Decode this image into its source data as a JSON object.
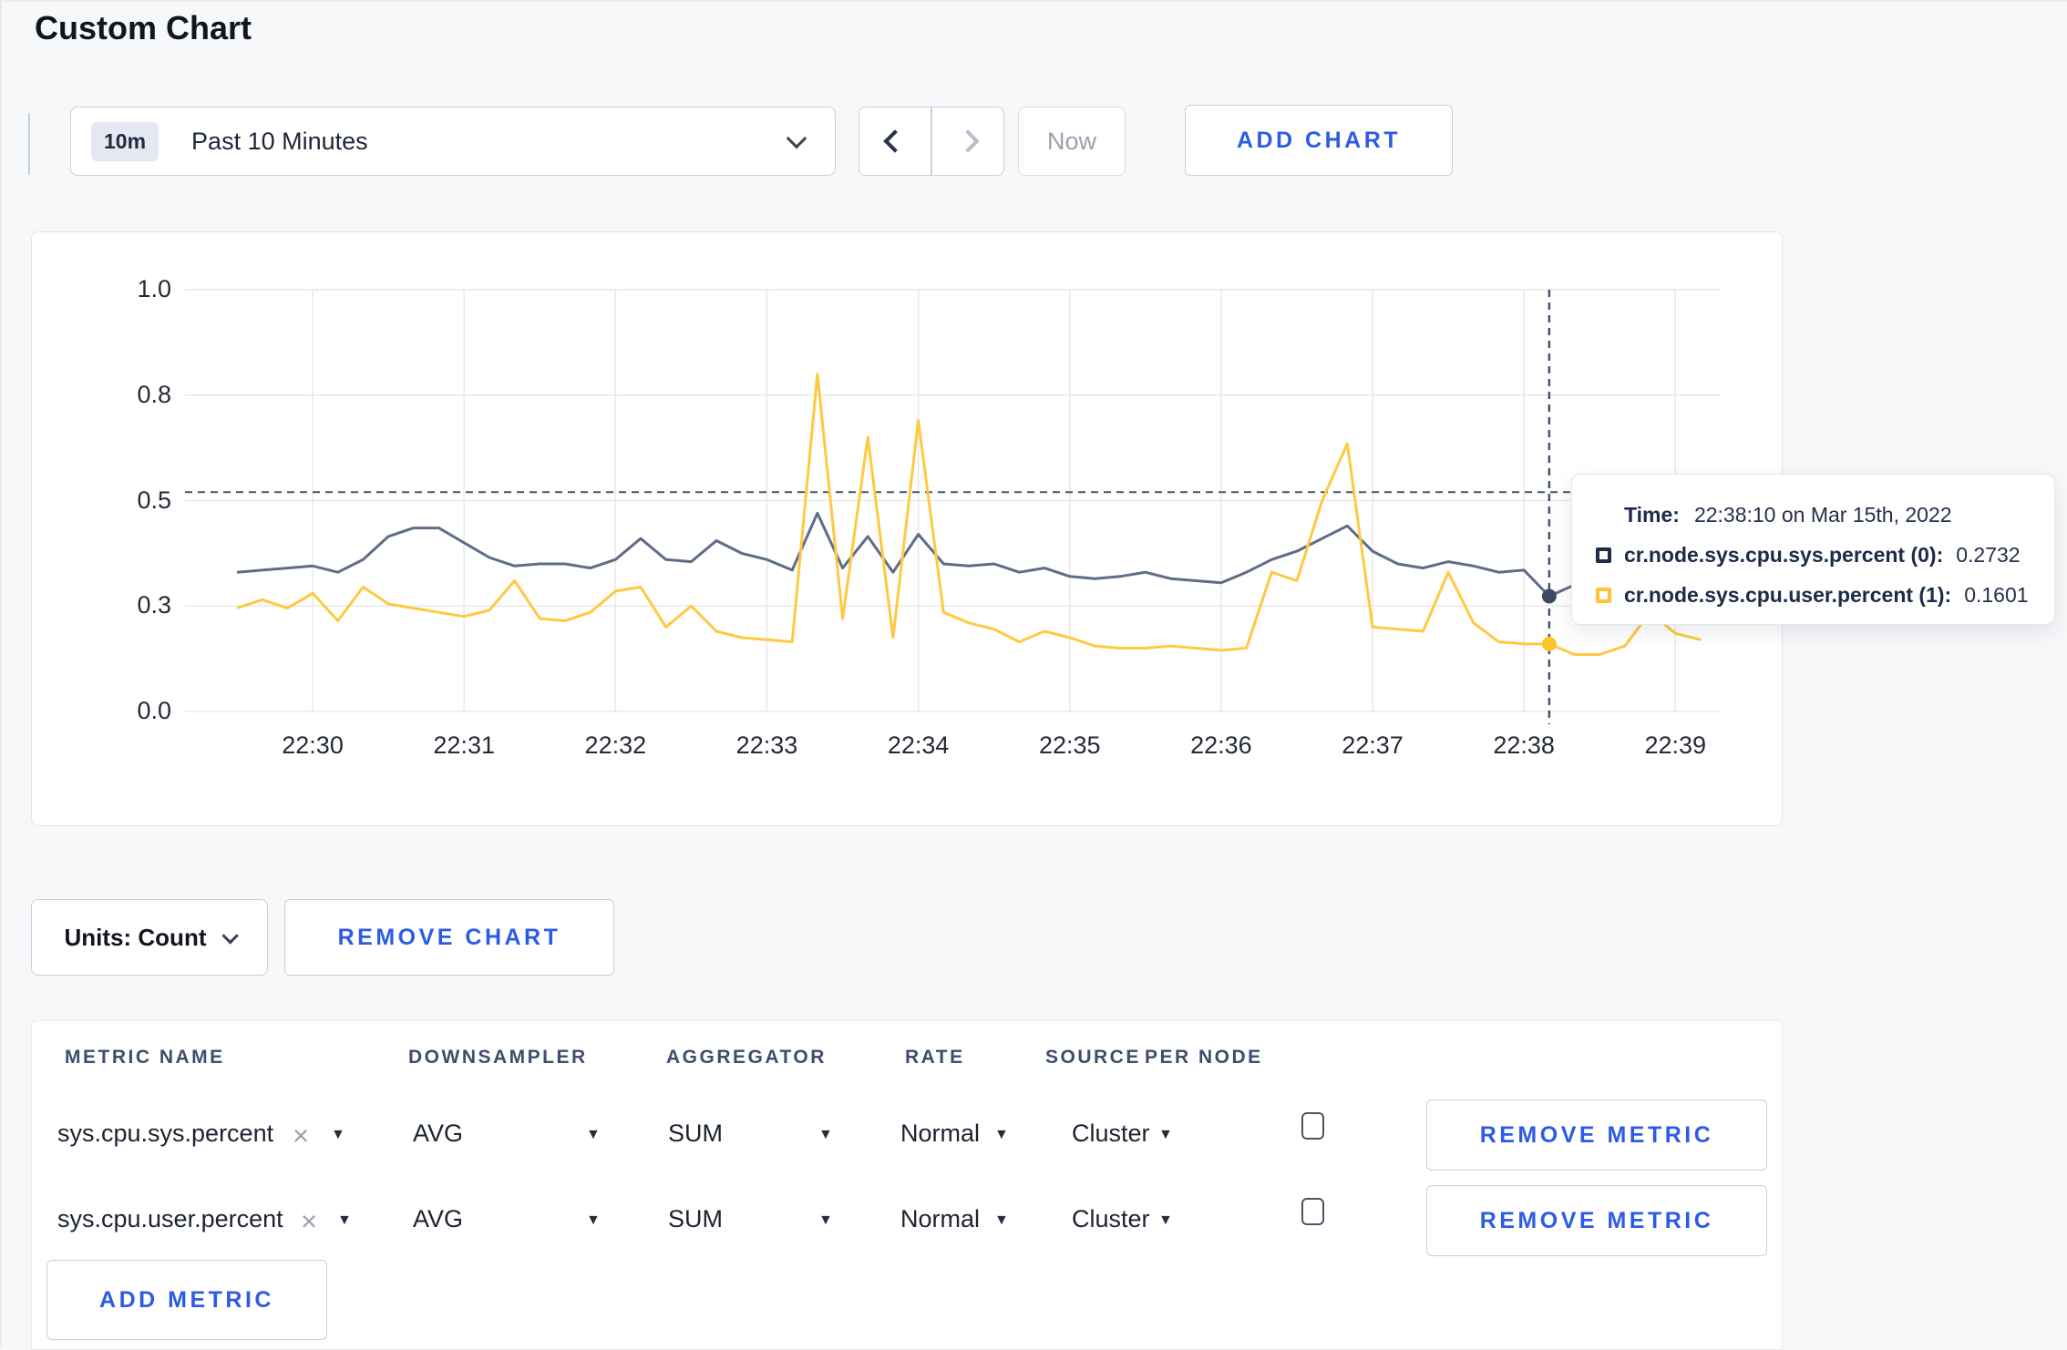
{
  "page": {
    "title": "Custom Chart"
  },
  "icons": {
    "dropdown_triangle": "▼",
    "clear_x": "×"
  },
  "toolbar": {
    "time_range": {
      "badge": "10m",
      "label": "Past 10 Minutes"
    },
    "now_label": "Now",
    "add_chart_label": "ADD CHART"
  },
  "tooltip": {
    "time_label": "Time:",
    "time_value": "22:38:10 on Mar 15th, 2022",
    "series": [
      {
        "name": "cr.node.sys.cpu.sys.percent (0):",
        "value": "0.2732",
        "square_color": "#1e2b4d"
      },
      {
        "name": "cr.node.sys.cpu.user.percent (1):",
        "value": "0.1601",
        "square_color": "#ffc42e"
      }
    ]
  },
  "chart_data": {
    "type": "line",
    "title": "",
    "xlabel": "",
    "ylabel": "",
    "ylim": [
      0,
      1
    ],
    "grid": true,
    "legend_position": "tooltip",
    "x_start": "22:29:30",
    "x_step_seconds": 10,
    "x_tick_labels": [
      "22:30",
      "22:31",
      "22:32",
      "22:33",
      "22:34",
      "22:35",
      "22:36",
      "22:37",
      "22:38",
      "22:39"
    ],
    "y_tick_labels": [
      "0.0",
      "0.3",
      "0.5",
      "0.8",
      "1.0"
    ],
    "y_tick_values": [
      0,
      0.25,
      0.5,
      0.75,
      1.0
    ],
    "series": [
      {
        "name": "cr.node.sys.cpu.sys.percent",
        "color": "#5f6c87",
        "values": [
          0.33,
          0.335,
          0.34,
          0.345,
          0.33,
          0.36,
          0.415,
          0.435,
          0.435,
          0.4,
          0.365,
          0.345,
          0.35,
          0.35,
          0.34,
          0.36,
          0.41,
          0.36,
          0.355,
          0.405,
          0.375,
          0.36,
          0.335,
          0.47,
          0.34,
          0.415,
          0.33,
          0.42,
          0.35,
          0.345,
          0.35,
          0.33,
          0.34,
          0.32,
          0.315,
          0.32,
          0.33,
          0.315,
          0.31,
          0.305,
          0.33,
          0.36,
          0.38,
          0.41,
          0.44,
          0.38,
          0.35,
          0.34,
          0.355,
          0.345,
          0.33,
          0.335,
          0.2732,
          0.3,
          0.295,
          0.3,
          0.295,
          0.3,
          0.295
        ]
      },
      {
        "name": "cr.node.sys.cpu.user.percent",
        "color": "#ffc940",
        "values": [
          0.245,
          0.265,
          0.245,
          0.28,
          0.215,
          0.295,
          0.255,
          0.245,
          0.235,
          0.225,
          0.24,
          0.31,
          0.22,
          0.215,
          0.235,
          0.285,
          0.295,
          0.2,
          0.25,
          0.19,
          0.175,
          0.17,
          0.165,
          0.8,
          0.22,
          0.65,
          0.175,
          0.69,
          0.235,
          0.21,
          0.195,
          0.165,
          0.19,
          0.175,
          0.155,
          0.15,
          0.15,
          0.155,
          0.15,
          0.145,
          0.15,
          0.33,
          0.31,
          0.5,
          0.635,
          0.2,
          0.195,
          0.19,
          0.33,
          0.21,
          0.165,
          0.16,
          0.1601,
          0.135,
          0.135,
          0.155,
          0.235,
          0.185,
          0.17
        ]
      }
    ],
    "hover": {
      "index": 52,
      "time": "22:38:10",
      "crosshair_y_value": 0.52,
      "crosshair_color": "#44536e",
      "values": [
        0.2732,
        0.1601
      ]
    }
  },
  "units_bar": {
    "units_label": "Units: Count",
    "remove_chart_label": "REMOVE CHART"
  },
  "metrics_table": {
    "headers": [
      "METRIC NAME",
      "DOWNSAMPLER",
      "AGGREGATOR",
      "RATE",
      "SOURCE",
      "PER NODE"
    ],
    "rows": [
      {
        "metric": "sys.cpu.sys.percent",
        "downsampler": "AVG",
        "aggregator": "SUM",
        "rate": "Normal",
        "source": "Cluster",
        "per_node_checked": false,
        "remove_label": "REMOVE METRIC"
      },
      {
        "metric": "sys.cpu.user.percent",
        "downsampler": "AVG",
        "aggregator": "SUM",
        "rate": "Normal",
        "source": "Cluster",
        "per_node_checked": false,
        "remove_label": "REMOVE METRIC"
      }
    ],
    "add_metric_label": "ADD METRIC"
  }
}
